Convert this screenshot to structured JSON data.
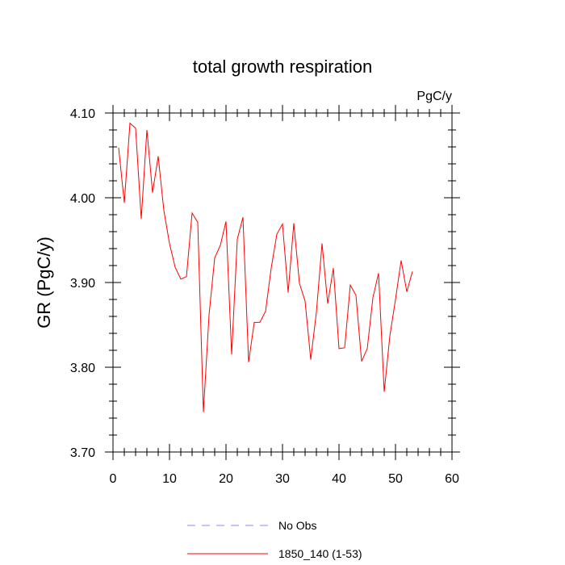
{
  "chart_data": {
    "type": "line",
    "title": "total growth respiration",
    "units": "PgC/y",
    "xlabel": "",
    "ylabel": "GR  (PgC/y)",
    "xlim": [
      0,
      60
    ],
    "ylim": [
      3.7,
      4.1
    ],
    "xticks": [
      0,
      10,
      20,
      30,
      40,
      50,
      60
    ],
    "xtick_labels": [
      "0",
      "10",
      "20",
      "30",
      "40",
      "50",
      "60"
    ],
    "yticks": [
      3.7,
      3.8,
      3.9,
      4.0,
      4.1
    ],
    "ytick_labels": [
      "3.70",
      "3.80",
      "3.90",
      "4.00",
      "4.10"
    ],
    "grid": false,
    "legend_position": "bottom",
    "series": [
      {
        "name": "1850_140 (1-53)",
        "color": "#ff0000",
        "dash": "solid",
        "x": [
          1,
          2,
          3,
          4,
          5,
          6,
          7,
          8,
          9,
          10,
          11,
          12,
          13,
          14,
          15,
          16,
          17,
          18,
          19,
          20,
          21,
          22,
          23,
          24,
          25,
          26,
          27,
          28,
          29,
          30,
          31,
          32,
          33,
          34,
          35,
          36,
          37,
          38,
          39,
          40,
          41,
          42,
          43,
          44,
          45,
          46,
          47,
          48,
          49,
          50,
          51,
          52,
          53
        ],
        "values": [
          4.059,
          3.994,
          4.088,
          4.082,
          3.975,
          4.08,
          4.006,
          4.049,
          3.985,
          3.946,
          3.918,
          3.904,
          3.907,
          3.982,
          3.971,
          3.747,
          3.862,
          3.929,
          3.944,
          3.972,
          3.815,
          3.951,
          3.977,
          3.806,
          3.853,
          3.853,
          3.866,
          3.917,
          3.957,
          3.969,
          3.888,
          3.97,
          3.899,
          3.878,
          3.809,
          3.865,
          3.946,
          3.875,
          3.917,
          3.822,
          3.823,
          3.897,
          3.885,
          3.807,
          3.822,
          3.882,
          3.911,
          3.771,
          3.837,
          3.88,
          3.926,
          3.889,
          3.913
        ]
      },
      {
        "name": "No Obs",
        "color": "#8888ff",
        "dash": "dashed",
        "x": [],
        "values": []
      }
    ]
  }
}
